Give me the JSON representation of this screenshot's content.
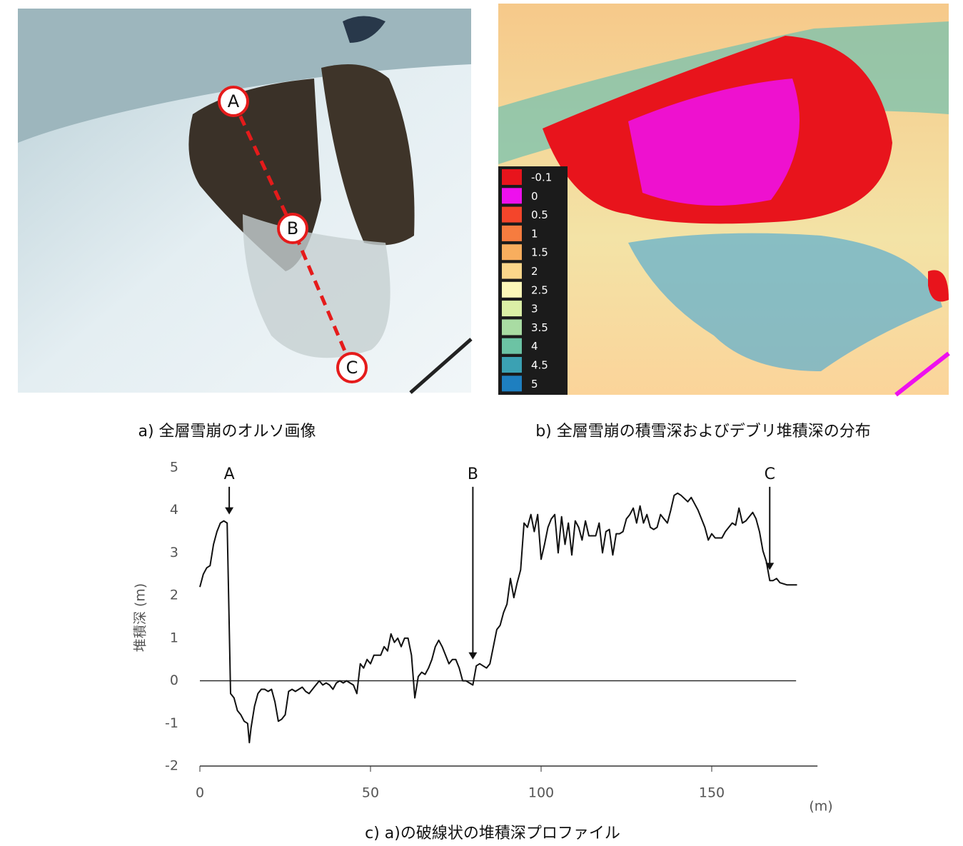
{
  "panel_a": {
    "caption": "a) 全層雪崩のオルソ画像",
    "markers": [
      "A",
      "B",
      "C"
    ]
  },
  "panel_b": {
    "caption": "b) 全層雪崩の積雪深およびデブリ堆積深の分布",
    "legend": {
      "labels": [
        "-0.1",
        "0",
        "0.5",
        "1",
        "1.5",
        "2",
        "2.5",
        "3",
        "3.5",
        "4",
        "4.5",
        "5"
      ],
      "colors": [
        "#e8141c",
        "#ee10ee",
        "#f4452b",
        "#f67c3f",
        "#f8ae5e",
        "#fbd68a",
        "#fcf7b8",
        "#dbefa6",
        "#a9dca3",
        "#6cc3a4",
        "#3ba1b3",
        "#1e7fc0"
      ]
    }
  },
  "chart_data": {
    "type": "line",
    "caption": "c) a)の破線状の堆積深プロファイル",
    "ylabel": "堆積深 (m)",
    "xunit": "(m)",
    "x": [
      0,
      1,
      2,
      3,
      4,
      5,
      6,
      7,
      8,
      9,
      10,
      11,
      12,
      13,
      14,
      14.5,
      15,
      16,
      17,
      18,
      19,
      20,
      21,
      22,
      23,
      24,
      25,
      26,
      27,
      28,
      29,
      30,
      31,
      32,
      33,
      34,
      35,
      36,
      37,
      38,
      39,
      40,
      41,
      42,
      43,
      44,
      45,
      46,
      47,
      48,
      49,
      50,
      51,
      52,
      53,
      54,
      55,
      56,
      57,
      58,
      59,
      60,
      61,
      62,
      63,
      64,
      65,
      66,
      67,
      68,
      69,
      70,
      71,
      72,
      73,
      74,
      75,
      76,
      77,
      78,
      79,
      80,
      81,
      82,
      83,
      84,
      85,
      86,
      87,
      88,
      89,
      90,
      91,
      92,
      93,
      94,
      95,
      96,
      97,
      98,
      99,
      100,
      101,
      102,
      103,
      104,
      105,
      106,
      107,
      108,
      109,
      110,
      111,
      112,
      113,
      114,
      115,
      116,
      117,
      118,
      119,
      120,
      121,
      122,
      123,
      124,
      125,
      126,
      127,
      128,
      129,
      130,
      131,
      132,
      133,
      134,
      135,
      136,
      137,
      138,
      139,
      140,
      141,
      143,
      144,
      146,
      148,
      149,
      150,
      151,
      153,
      154,
      156,
      157,
      158,
      159,
      160,
      162,
      163,
      164,
      165,
      166,
      167,
      168,
      169,
      170,
      172,
      175
    ],
    "series": [
      {
        "color": "#111111",
        "values": [
          2.2,
          2.5,
          2.65,
          2.7,
          3.2,
          3.5,
          3.7,
          3.75,
          3.7,
          -0.3,
          -0.4,
          -0.7,
          -0.8,
          -0.95,
          -1.0,
          -1.45,
          -1.1,
          -0.6,
          -0.3,
          -0.2,
          -0.2,
          -0.25,
          -0.2,
          -0.5,
          -0.95,
          -0.9,
          -0.8,
          -0.25,
          -0.2,
          -0.25,
          -0.2,
          -0.15,
          -0.25,
          -0.3,
          -0.2,
          -0.1,
          0,
          -0.1,
          -0.05,
          -0.1,
          -0.2,
          -0.05,
          0,
          -0.05,
          0,
          -0.05,
          -0.1,
          -0.3,
          0.4,
          0.3,
          0.5,
          0.4,
          0.6,
          0.6,
          0.6,
          0.8,
          0.7,
          1.1,
          0.9,
          1.0,
          0.8,
          1.0,
          1.0,
          0.6,
          -0.4,
          0.1,
          0.2,
          0.15,
          0.3,
          0.5,
          0.8,
          0.95,
          0.8,
          0.6,
          0.4,
          0.5,
          0.5,
          0.3,
          0,
          0,
          -0.05,
          -0.1,
          0.35,
          0.4,
          0.35,
          0.3,
          0.4,
          0.8,
          1.2,
          1.3,
          1.6,
          1.8,
          2.4,
          1.95,
          2.3,
          2.6,
          3.7,
          3.6,
          3.9,
          3.5,
          3.9,
          2.85,
          3.2,
          3.6,
          3.8,
          3.9,
          3.0,
          3.85,
          3.2,
          3.7,
          2.95,
          3.75,
          3.6,
          3.3,
          3.75,
          3.4,
          3.4,
          3.4,
          3.7,
          3.0,
          3.5,
          3.55,
          2.95,
          3.45,
          3.45,
          3.5,
          3.8,
          3.9,
          4.05,
          3.7,
          4.1,
          3.7,
          3.9,
          3.6,
          3.55,
          3.6,
          3.9,
          3.8,
          3.7,
          4.0,
          4.35,
          4.4,
          4.35,
          4.2,
          4.3,
          4.0,
          3.6,
          3.3,
          3.45,
          3.35,
          3.35,
          3.5,
          3.7,
          3.65,
          4.05,
          3.7,
          3.75,
          3.95,
          3.8,
          3.5,
          3.05,
          2.8,
          2.35,
          2.35,
          2.4,
          2.3,
          2.25,
          2.25
        ]
      }
    ],
    "xlim": [
      0,
      181
    ],
    "ylim": [
      -2,
      5
    ],
    "xticks": [
      0,
      50,
      100,
      150
    ],
    "yticks": [
      -2,
      -1,
      0,
      1,
      2,
      3,
      4,
      5
    ],
    "annotations": [
      {
        "label": "A",
        "x": 8.6,
        "y": 3.9,
        "from": 4.55
      },
      {
        "label": "B",
        "x": 80,
        "y": 0.5,
        "from": 4.55
      },
      {
        "label": "C",
        "x": 167,
        "y": 2.6,
        "from": 4.55
      }
    ]
  }
}
